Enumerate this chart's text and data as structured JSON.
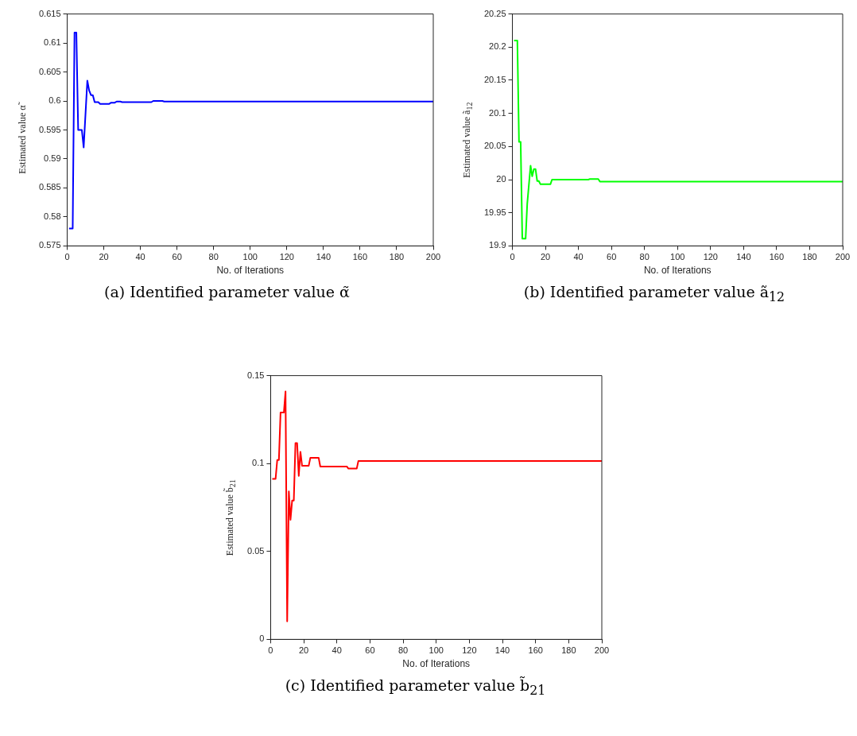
{
  "chart_data": [
    {
      "type": "line",
      "title": "(a) Identified parameter value α̃",
      "xlabel": "No. of Iterations",
      "ylabel": "Estimated value α̃",
      "xlim": [
        0,
        200
      ],
      "xticks": [
        0,
        20,
        40,
        60,
        80,
        100,
        120,
        140,
        160,
        180,
        200
      ],
      "ylim": [
        0.575,
        0.615
      ],
      "yticks": [
        0.575,
        0.58,
        0.585,
        0.59,
        0.595,
        0.6,
        0.605,
        0.61,
        0.615
      ],
      "grid": false,
      "legend": false,
      "marker": "none",
      "line_style": "solid",
      "series": [
        {
          "color": "#0000ff",
          "x": [
            1,
            3,
            4,
            5,
            6,
            8,
            9,
            11,
            12,
            13,
            14,
            15,
            17,
            18,
            23,
            24,
            26,
            27,
            29,
            30,
            46,
            47,
            52,
            53,
            200
          ],
          "values": [
            0.578,
            0.578,
            0.6118,
            0.6118,
            0.595,
            0.595,
            0.592,
            0.6035,
            0.6018,
            0.601,
            0.601,
            0.5998,
            0.5998,
            0.5995,
            0.5995,
            0.5997,
            0.5997,
            0.5999,
            0.5999,
            0.5998,
            0.5998,
            0.6,
            0.6,
            0.5999,
            0.5999
          ]
        }
      ]
    },
    {
      "type": "line",
      "title": "(b) Identified parameter value ã$_{12}$",
      "xlabel": "No. of Iterations",
      "ylabel": "Estimated value ã$_{12}$",
      "xlim": [
        0,
        200
      ],
      "xticks": [
        0,
        20,
        40,
        60,
        80,
        100,
        120,
        140,
        160,
        180,
        200
      ],
      "ylim": [
        19.9,
        20.25
      ],
      "yticks": [
        19.9,
        19.95,
        20,
        20.05,
        20.1,
        20.15,
        20.2,
        20.25
      ],
      "grid": false,
      "legend": false,
      "marker": "none",
      "line_style": "solid",
      "series": [
        {
          "color": "#00ff00",
          "x": [
            1,
            3,
            4,
            5,
            6,
            8,
            9,
            11,
            12,
            13,
            14,
            15,
            16,
            17,
            23,
            24,
            46,
            47,
            52,
            53,
            200
          ],
          "values": [
            20.21,
            20.21,
            20.057,
            20.057,
            19.911,
            19.911,
            19.964,
            20.021,
            20.005,
            20.016,
            20.016,
            19.998,
            19.998,
            19.993,
            19.993,
            20.0,
            20.0,
            20.001,
            20.001,
            19.997,
            19.997
          ]
        }
      ]
    },
    {
      "type": "line",
      "title": "(c) Identified parameter value b̃$_{21}$",
      "xlabel": "No. of Iterations",
      "ylabel": "Estimated value b̃$_{21}$",
      "xlim": [
        0,
        200
      ],
      "xticks": [
        0,
        20,
        40,
        60,
        80,
        100,
        120,
        140,
        160,
        180,
        200
      ],
      "ylim": [
        0,
        0.15
      ],
      "yticks": [
        0,
        0.05,
        0.1,
        0.15
      ],
      "grid": false,
      "legend": false,
      "marker": "none",
      "line_style": "solid",
      "series": [
        {
          "color": "#ff0000",
          "x": [
            1,
            3,
            4,
            5,
            6,
            8,
            9,
            10,
            11,
            12,
            13,
            14,
            15,
            16,
            17,
            18,
            19,
            23,
            24,
            29,
            30,
            46,
            47,
            52,
            53,
            200
          ],
          "values": [
            0.0913,
            0.0913,
            0.102,
            0.102,
            0.129,
            0.129,
            0.141,
            0.0102,
            0.0842,
            0.068,
            0.079,
            0.079,
            0.1116,
            0.1116,
            0.093,
            0.1067,
            0.0987,
            0.0987,
            0.1033,
            0.1033,
            0.0983,
            0.0983,
            0.0971,
            0.0971,
            0.1015,
            0.1015
          ]
        }
      ]
    }
  ]
}
